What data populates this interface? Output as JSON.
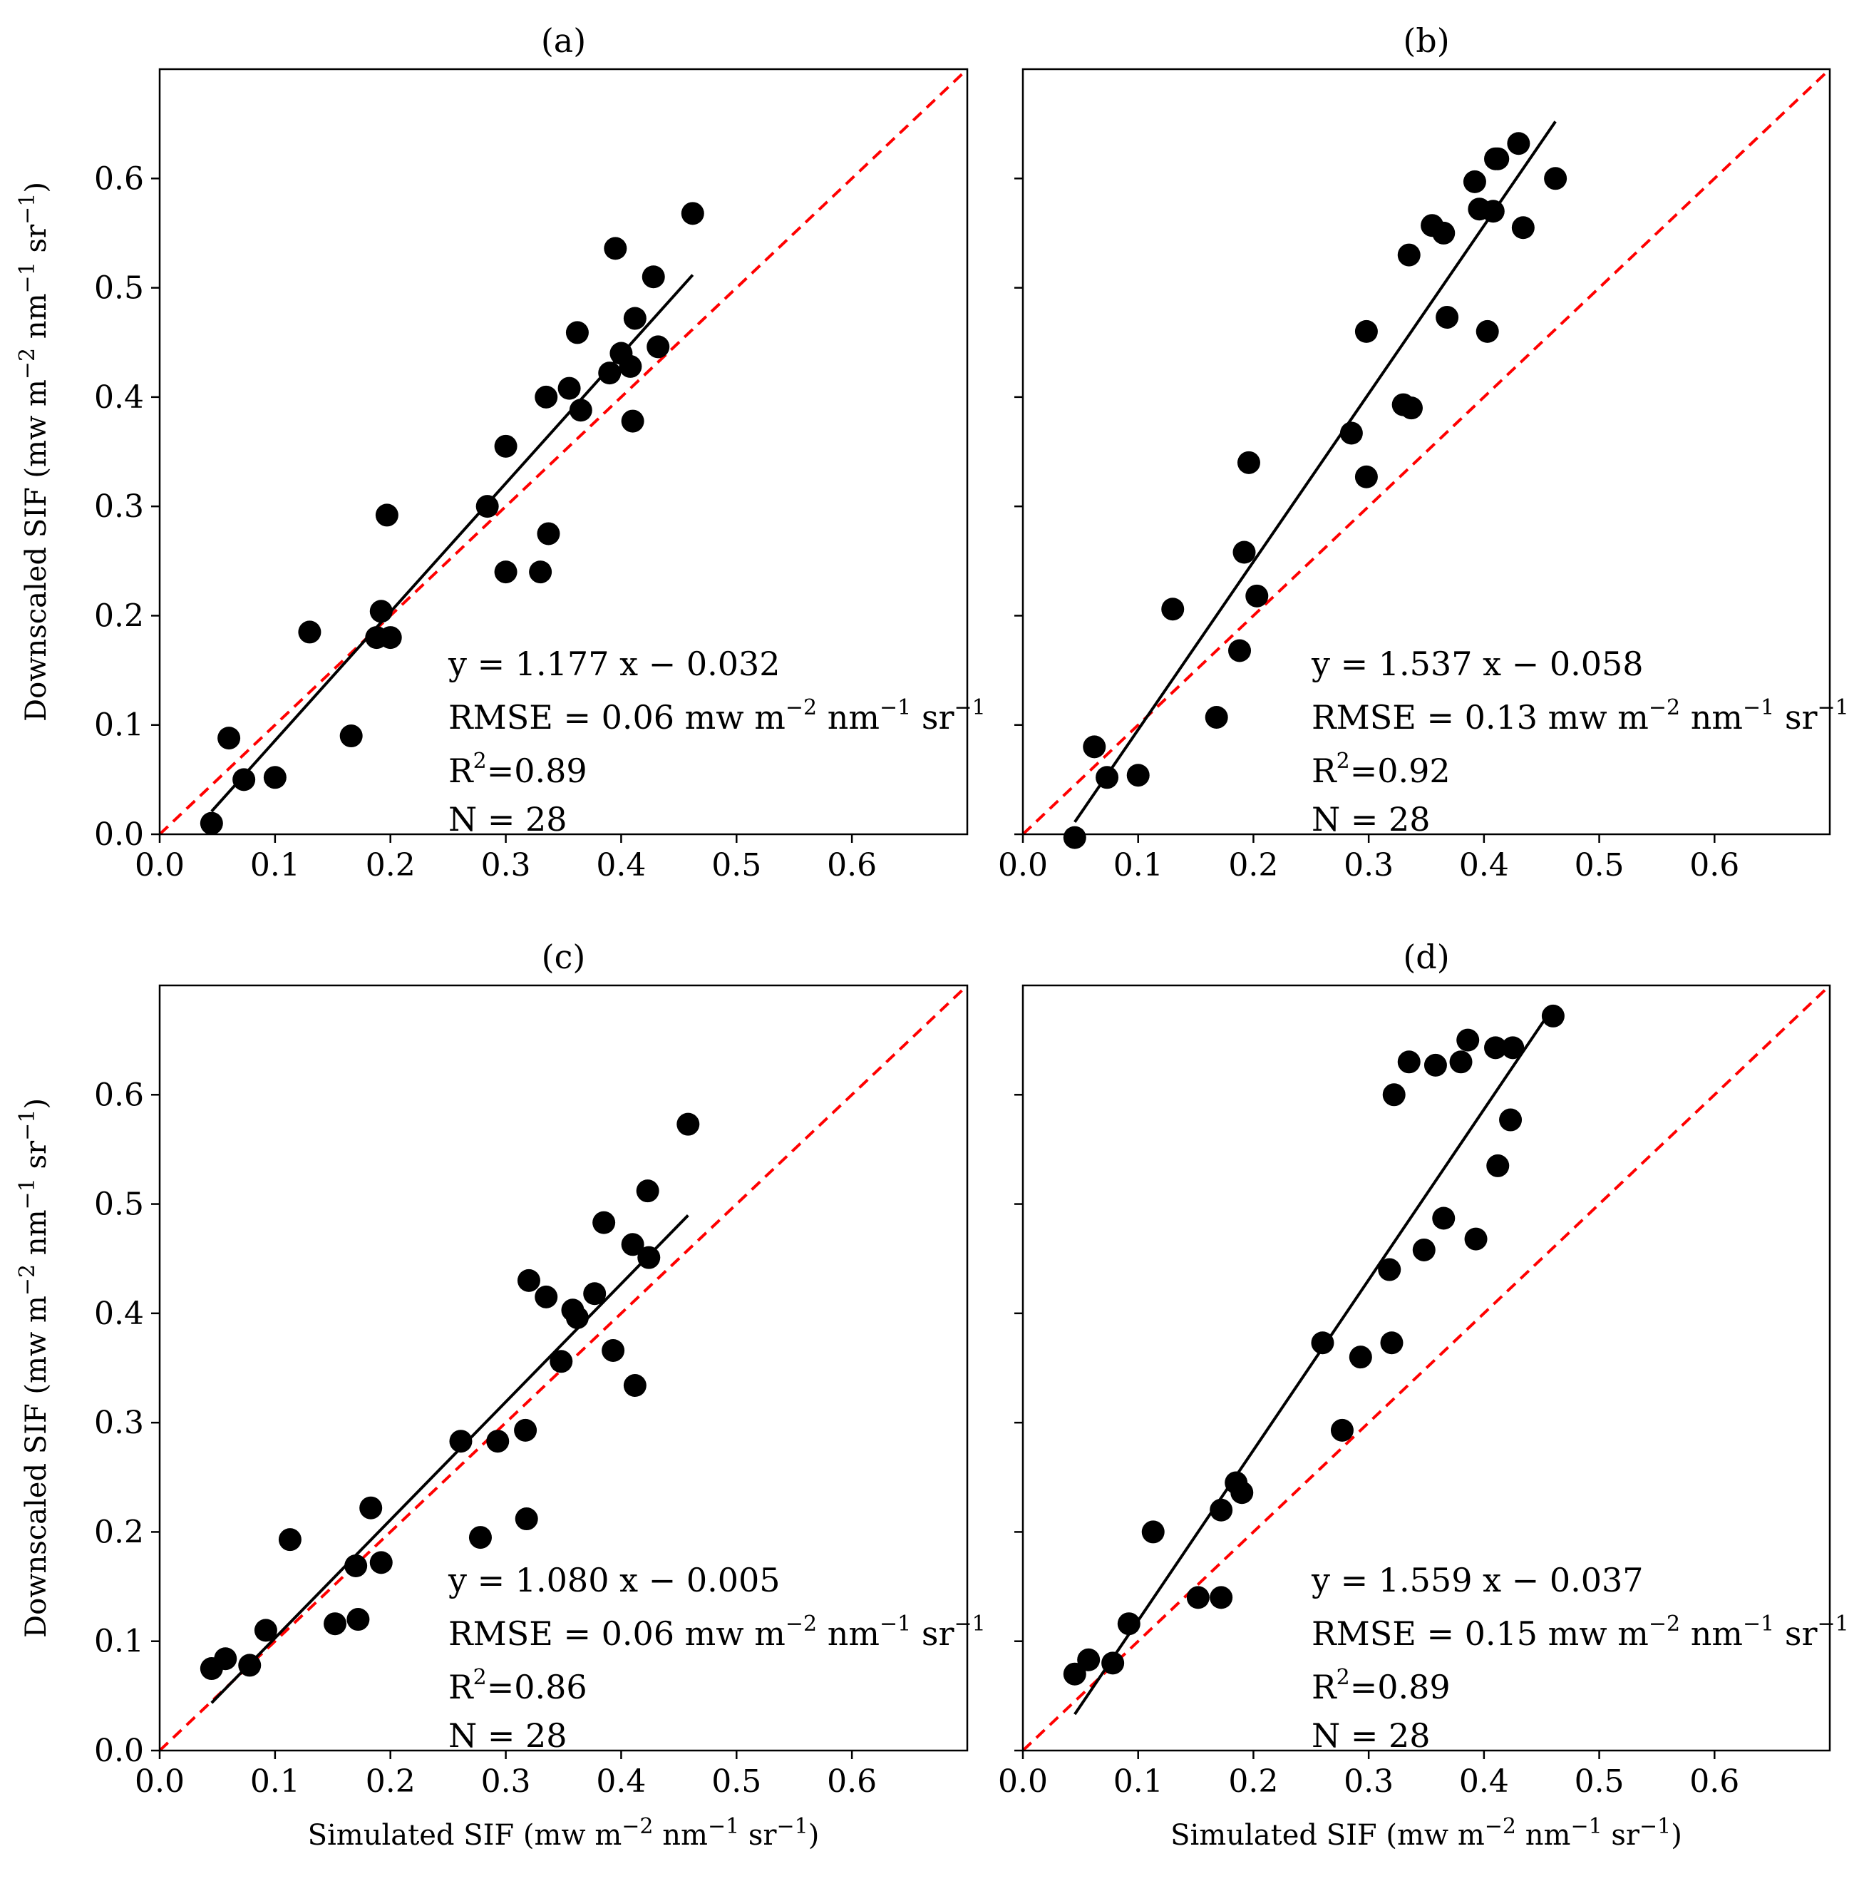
{
  "chart_data": [
    {
      "panel": "(a)",
      "type": "scatter",
      "title": "(a)",
      "xlabel": "",
      "ylabel": "Downscaled SIF (mw m⁻² nm⁻¹ sr⁻¹)",
      "xlim": [
        0,
        0.7
      ],
      "ylim": [
        0,
        0.7
      ],
      "xticks": [
        "0.0",
        "0.1",
        "0.2",
        "0.3",
        "0.4",
        "0.5",
        "0.6"
      ],
      "yticks": [
        "0.0",
        "0.1",
        "0.2",
        "0.3",
        "0.4",
        "0.5",
        "0.6"
      ],
      "points": [
        [
          0.045,
          0.01
        ],
        [
          0.06,
          0.088
        ],
        [
          0.073,
          0.05
        ],
        [
          0.1,
          0.052
        ],
        [
          0.13,
          0.185
        ],
        [
          0.166,
          0.09
        ],
        [
          0.188,
          0.18
        ],
        [
          0.192,
          0.204
        ],
        [
          0.197,
          0.292
        ],
        [
          0.2,
          0.18
        ],
        [
          0.284,
          0.3
        ],
        [
          0.3,
          0.355
        ],
        [
          0.3,
          0.24
        ],
        [
          0.33,
          0.24
        ],
        [
          0.335,
          0.4
        ],
        [
          0.337,
          0.275
        ],
        [
          0.355,
          0.408
        ],
        [
          0.362,
          0.459
        ],
        [
          0.365,
          0.388
        ],
        [
          0.39,
          0.422
        ],
        [
          0.395,
          0.536
        ],
        [
          0.4,
          0.44
        ],
        [
          0.408,
          0.428
        ],
        [
          0.41,
          0.378
        ],
        [
          0.412,
          0.472
        ],
        [
          0.428,
          0.51
        ],
        [
          0.432,
          0.446
        ],
        [
          0.462,
          0.568
        ]
      ],
      "fit": {
        "slope": 1.177,
        "intercept": -0.032,
        "x_range": [
          0.045,
          0.462
        ]
      },
      "one_to_one": true,
      "annotations": {
        "equation": "y = 1.177 x − 0.032",
        "rmse_prefix": "RMSE = 0.06 mw m",
        "r2_value": "=0.89",
        "n": "N = 28"
      }
    },
    {
      "panel": "(b)",
      "type": "scatter",
      "title": "(b)",
      "xlabel": "",
      "ylabel": "",
      "xlim": [
        0,
        0.7
      ],
      "ylim": [
        0,
        0.7
      ],
      "xticks": [
        "0.0",
        "0.1",
        "0.2",
        "0.3",
        "0.4",
        "0.5",
        "0.6"
      ],
      "yticks": [],
      "points": [
        [
          0.045,
          -0.003
        ],
        [
          0.062,
          0.08
        ],
        [
          0.073,
          0.052
        ],
        [
          0.1,
          0.054
        ],
        [
          0.13,
          0.206
        ],
        [
          0.168,
          0.107
        ],
        [
          0.188,
          0.168
        ],
        [
          0.192,
          0.258
        ],
        [
          0.196,
          0.34
        ],
        [
          0.203,
          0.218
        ],
        [
          0.285,
          0.367
        ],
        [
          0.298,
          0.327
        ],
        [
          0.298,
          0.46
        ],
        [
          0.33,
          0.393
        ],
        [
          0.335,
          0.53
        ],
        [
          0.337,
          0.39
        ],
        [
          0.355,
          0.557
        ],
        [
          0.365,
          0.55
        ],
        [
          0.368,
          0.473
        ],
        [
          0.392,
          0.597
        ],
        [
          0.396,
          0.572
        ],
        [
          0.403,
          0.46
        ],
        [
          0.408,
          0.57
        ],
        [
          0.412,
          0.618
        ],
        [
          0.43,
          0.632
        ],
        [
          0.434,
          0.555
        ],
        [
          0.462,
          0.6
        ],
        [
          0.41,
          0.618
        ]
      ],
      "fit": {
        "slope": 1.537,
        "intercept": -0.058,
        "x_range": [
          0.045,
          0.462
        ]
      },
      "one_to_one": true,
      "annotations": {
        "equation": "y = 1.537 x − 0.058",
        "rmse_prefix": "RMSE = 0.13 mw m",
        "r2_value": "=0.92",
        "n": "N = 28"
      }
    },
    {
      "panel": "(c)",
      "type": "scatter",
      "title": "(c)",
      "xlabel": "Simulated SIF (mw m⁻² nm⁻¹ sr⁻¹)",
      "ylabel": "Downscaled SIF (mw m⁻² nm⁻¹ sr⁻¹)",
      "xlim": [
        0,
        0.7
      ],
      "ylim": [
        0,
        0.7
      ],
      "xticks": [
        "0.0",
        "0.1",
        "0.2",
        "0.3",
        "0.4",
        "0.5",
        "0.6"
      ],
      "yticks": [
        "0.0",
        "0.1",
        "0.2",
        "0.3",
        "0.4",
        "0.5",
        "0.6"
      ],
      "points": [
        [
          0.045,
          0.075
        ],
        [
          0.057,
          0.084
        ],
        [
          0.078,
          0.078
        ],
        [
          0.092,
          0.11
        ],
        [
          0.113,
          0.193
        ],
        [
          0.152,
          0.116
        ],
        [
          0.17,
          0.169
        ],
        [
          0.172,
          0.12
        ],
        [
          0.183,
          0.222
        ],
        [
          0.192,
          0.172
        ],
        [
          0.261,
          0.283
        ],
        [
          0.278,
          0.195
        ],
        [
          0.293,
          0.283
        ],
        [
          0.317,
          0.293
        ],
        [
          0.318,
          0.212
        ],
        [
          0.32,
          0.43
        ],
        [
          0.335,
          0.415
        ],
        [
          0.348,
          0.356
        ],
        [
          0.358,
          0.403
        ],
        [
          0.362,
          0.396
        ],
        [
          0.377,
          0.418
        ],
        [
          0.385,
          0.483
        ],
        [
          0.393,
          0.366
        ],
        [
          0.41,
          0.463
        ],
        [
          0.412,
          0.334
        ],
        [
          0.423,
          0.512
        ],
        [
          0.424,
          0.451
        ],
        [
          0.458,
          0.573
        ]
      ],
      "fit": {
        "slope": 1.08,
        "intercept": -0.005,
        "x_range": [
          0.045,
          0.458
        ]
      },
      "one_to_one": true,
      "annotations": {
        "equation": "y = 1.080 x − 0.005",
        "rmse_prefix": "RMSE = 0.06 mw m",
        "r2_value": "=0.86",
        "n": "N = 28"
      }
    },
    {
      "panel": "(d)",
      "type": "scatter",
      "title": "(d)",
      "xlabel": "Simulated SIF (mw m⁻² nm⁻¹ sr⁻¹)",
      "ylabel": "",
      "xlim": [
        0,
        0.7
      ],
      "ylim": [
        0,
        0.7
      ],
      "xticks": [
        "0.0",
        "0.1",
        "0.2",
        "0.3",
        "0.4",
        "0.5",
        "0.6"
      ],
      "yticks": [],
      "points": [
        [
          0.045,
          0.07
        ],
        [
          0.057,
          0.083
        ],
        [
          0.078,
          0.08
        ],
        [
          0.092,
          0.116
        ],
        [
          0.113,
          0.2
        ],
        [
          0.152,
          0.14
        ],
        [
          0.172,
          0.14
        ],
        [
          0.172,
          0.22
        ],
        [
          0.185,
          0.245
        ],
        [
          0.19,
          0.236
        ],
        [
          0.26,
          0.373
        ],
        [
          0.277,
          0.293
        ],
        [
          0.293,
          0.36
        ],
        [
          0.318,
          0.44
        ],
        [
          0.32,
          0.373
        ],
        [
          0.322,
          0.6
        ],
        [
          0.335,
          0.63
        ],
        [
          0.348,
          0.458
        ],
        [
          0.358,
          0.627
        ],
        [
          0.365,
          0.487
        ],
        [
          0.38,
          0.63
        ],
        [
          0.386,
          0.65
        ],
        [
          0.393,
          0.468
        ],
        [
          0.41,
          0.643
        ],
        [
          0.412,
          0.535
        ],
        [
          0.423,
          0.577
        ],
        [
          0.425,
          0.643
        ],
        [
          0.46,
          0.672
        ]
      ],
      "fit": {
        "slope": 1.559,
        "intercept": -0.037,
        "x_range": [
          0.045,
          0.46
        ]
      },
      "one_to_one": true,
      "annotations": {
        "equation": "y = 1.559 x − 0.037",
        "rmse_prefix": "RMSE = 0.15 mw m",
        "r2_value": "=0.89",
        "n": "N = 28"
      }
    }
  ],
  "colors": {
    "points": "#000000",
    "fit_line": "#000000",
    "one_to_one": "#ff0000",
    "frame": "#000000"
  }
}
